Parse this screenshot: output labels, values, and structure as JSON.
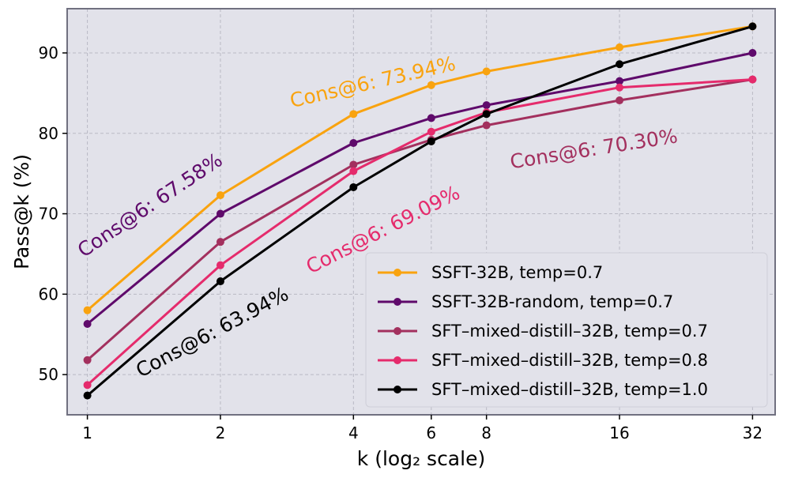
{
  "chart_data": {
    "type": "line",
    "xlabel": "k (log₂ scale)",
    "ylabel": "Pass@k (%)",
    "x": [
      1,
      2,
      4,
      6,
      8,
      16,
      32
    ],
    "x_tick_labels": [
      "1",
      "2",
      "4",
      "6",
      "8",
      "16",
      "32"
    ],
    "x_scale": "log2",
    "xlim": [
      0.9,
      36.0
    ],
    "ylim": [
      45,
      95.5
    ],
    "y_ticks": [
      50,
      60,
      70,
      80,
      90
    ],
    "y_tick_labels": [
      "50",
      "60",
      "70",
      "80",
      "90"
    ],
    "grid": true,
    "background": "#e2e2ea",
    "legend_position": "lower-right",
    "series": [
      {
        "name": "SSFT-32B, temp=0.7",
        "color": "#f9a30f",
        "values": [
          58.0,
          72.3,
          82.4,
          86.0,
          87.7,
          90.7,
          93.3
        ]
      },
      {
        "name": "SSFT-32B-random, temp=0.7",
        "color": "#5f0a6b",
        "values": [
          56.3,
          70.0,
          78.8,
          81.9,
          83.5,
          86.5,
          90.0
        ]
      },
      {
        "name": "SFT–mixed–distill–32B, temp=0.7",
        "color": "#a3305e",
        "values": [
          51.8,
          66.5,
          76.1,
          79.2,
          81.0,
          84.1,
          86.7
        ]
      },
      {
        "name": "SFT–mixed–distill–32B, temp=0.8",
        "color": "#e52b6c",
        "values": [
          48.7,
          63.6,
          75.3,
          80.2,
          82.6,
          85.7,
          86.7
        ]
      },
      {
        "name": "SFT–mixed–distill–32B, temp=1.0",
        "color": "#000000",
        "values": [
          47.4,
          61.6,
          73.3,
          79.0,
          82.4,
          88.6,
          93.3
        ]
      }
    ],
    "annotations": [
      {
        "text": "Cons@6: 73.94%",
        "color": "#f9a30f",
        "at_x": 2.9,
        "at_y": 83.2,
        "angle": -13
      },
      {
        "text": "Cons@6: 67.58%",
        "color": "#5f0a6b",
        "at_x": 0.98,
        "at_y": 64.5,
        "angle": -34
      },
      {
        "text": "Cons@6: 70.30%",
        "color": "#a3305e",
        "at_x": 9.1,
        "at_y": 75.6,
        "angle": -9
      },
      {
        "text": "Cons@6: 69.09%",
        "color": "#e52b6c",
        "at_x": 3.2,
        "at_y": 62.5,
        "angle": -27
      },
      {
        "text": "Cons@6: 63.94%",
        "color": "#000000",
        "at_x": 1.32,
        "at_y": 49.6,
        "angle": -28
      }
    ]
  }
}
